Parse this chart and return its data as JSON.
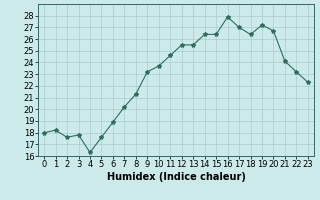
{
  "x": [
    0,
    1,
    2,
    3,
    4,
    5,
    6,
    7,
    8,
    9,
    10,
    11,
    12,
    13,
    14,
    15,
    16,
    17,
    18,
    19,
    20,
    21,
    22,
    23
  ],
  "y": [
    18,
    18.2,
    17.6,
    17.8,
    16.3,
    17.6,
    18.9,
    20.2,
    21.3,
    23.2,
    23.7,
    24.6,
    25.5,
    25.5,
    26.4,
    26.4,
    27.9,
    27.0,
    26.4,
    27.2,
    26.7,
    24.1,
    23.2,
    22.3
  ],
  "line_color": "#2d6e5e",
  "marker": "*",
  "marker_size": 3,
  "bg_color": "#cceaea",
  "grid_color": "#aacccc",
  "xlabel": "Humidex (Indice chaleur)",
  "ylim": [
    16,
    29
  ],
  "xlim": [
    -0.5,
    23.5
  ],
  "yticks": [
    16,
    17,
    18,
    19,
    20,
    21,
    22,
    23,
    24,
    25,
    26,
    27,
    28
  ],
  "xticks": [
    0,
    1,
    2,
    3,
    4,
    5,
    6,
    7,
    8,
    9,
    10,
    11,
    12,
    13,
    14,
    15,
    16,
    17,
    18,
    19,
    20,
    21,
    22,
    23
  ],
  "xlabel_fontsize": 7,
  "tick_fontsize": 6,
  "label_color": "#000000",
  "spine_color": "#336666",
  "title_bar_color": "#336666"
}
